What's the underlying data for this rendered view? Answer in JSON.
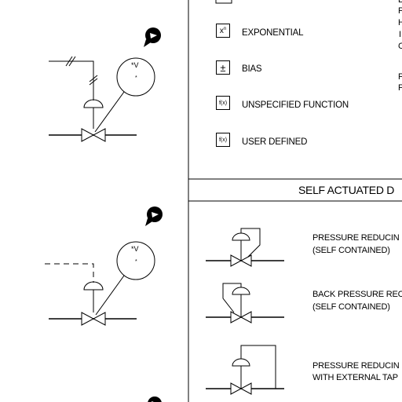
{
  "functions": [
    {
      "symbol_base": "x",
      "symbol_sup": "n",
      "label": "EXPONENTIAL"
    },
    {
      "symbol": "±",
      "label": "BIAS"
    },
    {
      "symbol": "f(x)",
      "label": "UNSPECIFIED FUNCTION"
    },
    {
      "symbol": "f(x)",
      "label": "USER DEFINED"
    }
  ],
  "right_edge_letters": [
    "L",
    "F",
    "H",
    "I",
    "C",
    "",
    "F",
    "F"
  ],
  "section_title": "SELF ACTUATED D",
  "self_actuated": [
    {
      "line1": "PRESSURE REDUCIN",
      "line2": "(SELF CONTAINED)"
    },
    {
      "line1": "BACK PRESSURE REC",
      "line2": "(SELF CONTAINED)"
    },
    {
      "line1": "PRESSURE REDUCIN",
      "line2": "WITH EXTERNAL TAP"
    }
  ],
  "instrument_label": "*V",
  "instrument_sub": "*"
}
